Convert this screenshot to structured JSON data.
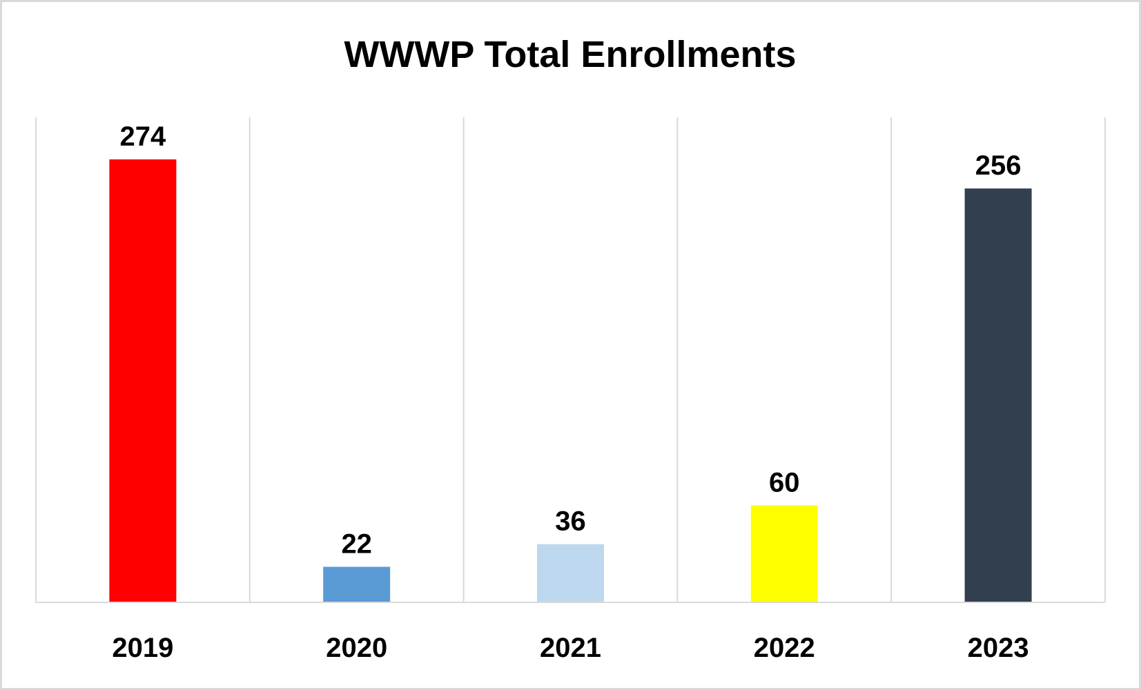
{
  "chart_data": {
    "type": "bar",
    "title": "WWWP Total Enrollments",
    "xlabel": "",
    "ylabel": "",
    "categories": [
      "2019",
      "2020",
      "2021",
      "2022",
      "2023"
    ],
    "values": [
      274,
      22,
      36,
      60,
      256
    ],
    "bar_colors": [
      "#ff0000",
      "#5b9bd5",
      "#bdd7ee",
      "#ffff00",
      "#323f4f"
    ],
    "data_labels": [
      "274",
      "22",
      "36",
      "60",
      "256"
    ],
    "ylim": [
      0,
      274
    ],
    "grid": "vertical separators",
    "legend": "none"
  }
}
